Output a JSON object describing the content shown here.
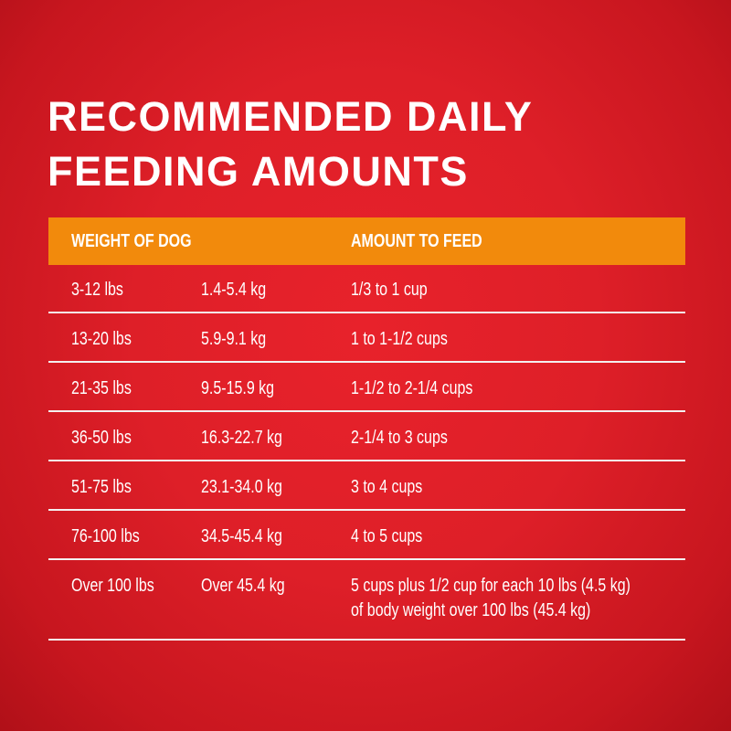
{
  "title": {
    "line1": "RECOMMENDED DAILY",
    "line2": "FEEDING AMOUNTS"
  },
  "table": {
    "headers": {
      "weight": "WEIGHT OF DOG",
      "amount": "AMOUNT TO FEED"
    },
    "rows": [
      {
        "lbs": "3-12 lbs",
        "kg": "1.4-5.4 kg",
        "amount": "1/3 to 1 cup"
      },
      {
        "lbs": "13-20 lbs",
        "kg": "5.9-9.1 kg",
        "amount": "1 to 1-1/2 cups"
      },
      {
        "lbs": "21-35 lbs",
        "kg": "9.5-15.9 kg",
        "amount": "1-1/2 to 2-1/4 cups"
      },
      {
        "lbs": "36-50 lbs",
        "kg": "16.3-22.7 kg",
        "amount": "2-1/4 to 3 cups"
      },
      {
        "lbs": "51-75 lbs",
        "kg": "23.1-34.0 kg",
        "amount": "3 to 4 cups"
      },
      {
        "lbs": "76-100 lbs",
        "kg": "34.5-45.4 kg",
        "amount": "4 to 5 cups"
      },
      {
        "lbs": "Over 100 lbs",
        "kg": "Over 45.4 kg",
        "amount": "5 cups plus 1/2 cup for each 10 lbs (4.5 kg)",
        "amount_line2": "of body weight over 100 lbs (45.4 kg)"
      }
    ]
  },
  "colors": {
    "background": "#de1f28",
    "header": "#f28a0c",
    "text": "#ffffff"
  }
}
